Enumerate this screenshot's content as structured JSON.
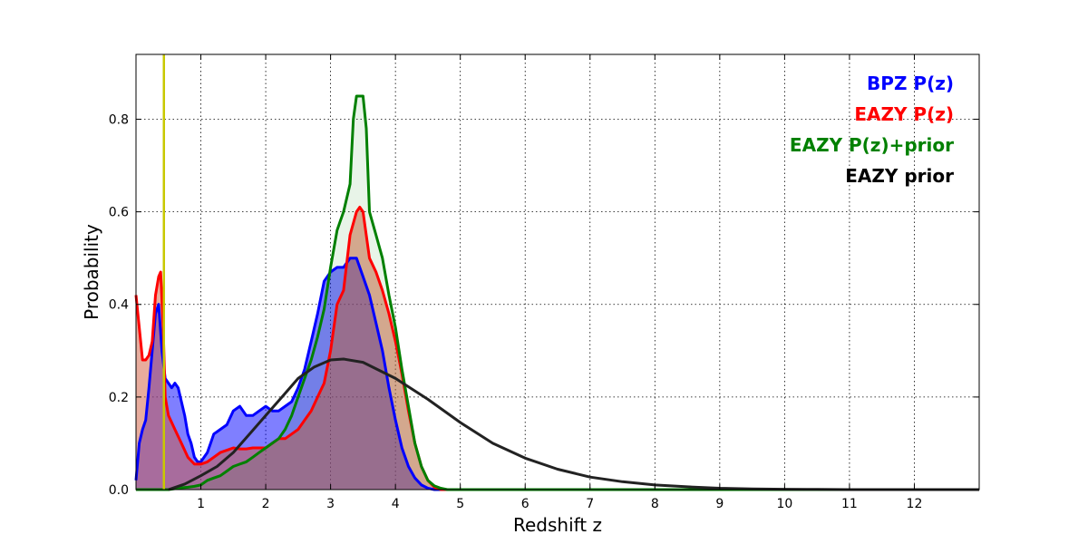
{
  "chart_data": {
    "type": "line",
    "title": "",
    "xlabel": "Redshift z",
    "ylabel": "Probability",
    "xlim": [
      0,
      13
    ],
    "ylim": [
      0,
      0.94
    ],
    "xticks": [
      1,
      2,
      3,
      4,
      5,
      6,
      7,
      8,
      9,
      10,
      11,
      12
    ],
    "yticks": [
      0.0,
      0.2,
      0.4,
      0.6,
      0.8
    ],
    "ytick_labels": [
      "0.0",
      "0.2",
      "0.4",
      "0.6",
      "0.8"
    ],
    "grid": true,
    "legend_position": "top-right",
    "vline": {
      "x": 0.43,
      "color": "#c8c800"
    },
    "series": [
      {
        "name": "BPZ P(z)",
        "color": "#0000ff",
        "fill": "#0000ff",
        "fill_opacity": 0.5,
        "points": [
          [
            0,
            0.02
          ],
          [
            0.05,
            0.1
          ],
          [
            0.1,
            0.13
          ],
          [
            0.15,
            0.15
          ],
          [
            0.2,
            0.22
          ],
          [
            0.25,
            0.3
          ],
          [
            0.3,
            0.38
          ],
          [
            0.35,
            0.4
          ],
          [
            0.4,
            0.3
          ],
          [
            0.45,
            0.24
          ],
          [
            0.5,
            0.23
          ],
          [
            0.55,
            0.22
          ],
          [
            0.6,
            0.23
          ],
          [
            0.65,
            0.22
          ],
          [
            0.7,
            0.19
          ],
          [
            0.75,
            0.16
          ],
          [
            0.8,
            0.12
          ],
          [
            0.85,
            0.1
          ],
          [
            0.9,
            0.07
          ],
          [
            0.95,
            0.06
          ],
          [
            1.0,
            0.06
          ],
          [
            1.05,
            0.07
          ],
          [
            1.1,
            0.08
          ],
          [
            1.15,
            0.1
          ],
          [
            1.2,
            0.12
          ],
          [
            1.3,
            0.13
          ],
          [
            1.4,
            0.14
          ],
          [
            1.5,
            0.17
          ],
          [
            1.6,
            0.18
          ],
          [
            1.7,
            0.16
          ],
          [
            1.8,
            0.16
          ],
          [
            1.9,
            0.17
          ],
          [
            2.0,
            0.18
          ],
          [
            2.1,
            0.17
          ],
          [
            2.2,
            0.17
          ],
          [
            2.3,
            0.18
          ],
          [
            2.4,
            0.19
          ],
          [
            2.5,
            0.22
          ],
          [
            2.6,
            0.26
          ],
          [
            2.7,
            0.32
          ],
          [
            2.8,
            0.38
          ],
          [
            2.9,
            0.45
          ],
          [
            3.0,
            0.47
          ],
          [
            3.1,
            0.48
          ],
          [
            3.2,
            0.48
          ],
          [
            3.3,
            0.5
          ],
          [
            3.4,
            0.5
          ],
          [
            3.5,
            0.46
          ],
          [
            3.6,
            0.42
          ],
          [
            3.7,
            0.36
          ],
          [
            3.8,
            0.3
          ],
          [
            3.9,
            0.22
          ],
          [
            4.0,
            0.15
          ],
          [
            4.1,
            0.09
          ],
          [
            4.2,
            0.05
          ],
          [
            4.3,
            0.025
          ],
          [
            4.4,
            0.01
          ],
          [
            4.5,
            0.003
          ],
          [
            4.6,
            0.0
          ],
          [
            5,
            0.0
          ],
          [
            13,
            0.0
          ]
        ]
      },
      {
        "name": "EAZY P(z)",
        "color": "#ff0000",
        "fill": "#d25a3c",
        "fill_opacity": 0.5,
        "points": [
          [
            0,
            0.42
          ],
          [
            0.05,
            0.35
          ],
          [
            0.1,
            0.28
          ],
          [
            0.15,
            0.28
          ],
          [
            0.2,
            0.29
          ],
          [
            0.25,
            0.32
          ],
          [
            0.3,
            0.42
          ],
          [
            0.35,
            0.46
          ],
          [
            0.38,
            0.47
          ],
          [
            0.42,
            0.35
          ],
          [
            0.45,
            0.2
          ],
          [
            0.5,
            0.16
          ],
          [
            0.6,
            0.13
          ],
          [
            0.7,
            0.1
          ],
          [
            0.8,
            0.07
          ],
          [
            0.9,
            0.055
          ],
          [
            1.0,
            0.055
          ],
          [
            1.1,
            0.06
          ],
          [
            1.2,
            0.07
          ],
          [
            1.3,
            0.08
          ],
          [
            1.4,
            0.085
          ],
          [
            1.5,
            0.09
          ],
          [
            1.6,
            0.088
          ],
          [
            1.7,
            0.088
          ],
          [
            1.8,
            0.09
          ],
          [
            1.9,
            0.09
          ],
          [
            2.0,
            0.09
          ],
          [
            2.1,
            0.1
          ],
          [
            2.2,
            0.11
          ],
          [
            2.3,
            0.11
          ],
          [
            2.4,
            0.12
          ],
          [
            2.5,
            0.13
          ],
          [
            2.6,
            0.15
          ],
          [
            2.7,
            0.17
          ],
          [
            2.8,
            0.2
          ],
          [
            2.9,
            0.23
          ],
          [
            3.0,
            0.3
          ],
          [
            3.1,
            0.4
          ],
          [
            3.2,
            0.43
          ],
          [
            3.3,
            0.55
          ],
          [
            3.4,
            0.6
          ],
          [
            3.45,
            0.61
          ],
          [
            3.5,
            0.6
          ],
          [
            3.6,
            0.5
          ],
          [
            3.7,
            0.47
          ],
          [
            3.8,
            0.43
          ],
          [
            3.9,
            0.38
          ],
          [
            4.0,
            0.32
          ],
          [
            4.1,
            0.25
          ],
          [
            4.2,
            0.17
          ],
          [
            4.3,
            0.1
          ],
          [
            4.4,
            0.05
          ],
          [
            4.5,
            0.02
          ],
          [
            4.6,
            0.005
          ],
          [
            4.7,
            0.0
          ],
          [
            13,
            0.0
          ]
        ]
      },
      {
        "name": "EAZY P(z)+prior",
        "color": "#008000",
        "fill": "#008000",
        "fill_opacity": 0.09,
        "points": [
          [
            0,
            0.0
          ],
          [
            0.5,
            0.0
          ],
          [
            0.6,
            0.002
          ],
          [
            0.7,
            0.004
          ],
          [
            0.8,
            0.005
          ],
          [
            0.9,
            0.007
          ],
          [
            1.0,
            0.01
          ],
          [
            1.1,
            0.02
          ],
          [
            1.2,
            0.025
          ],
          [
            1.3,
            0.03
          ],
          [
            1.4,
            0.04
          ],
          [
            1.5,
            0.05
          ],
          [
            1.6,
            0.055
          ],
          [
            1.7,
            0.06
          ],
          [
            1.8,
            0.07
          ],
          [
            1.9,
            0.08
          ],
          [
            2.0,
            0.09
          ],
          [
            2.1,
            0.1
          ],
          [
            2.2,
            0.11
          ],
          [
            2.3,
            0.13
          ],
          [
            2.4,
            0.16
          ],
          [
            2.5,
            0.2
          ],
          [
            2.6,
            0.24
          ],
          [
            2.7,
            0.28
          ],
          [
            2.8,
            0.33
          ],
          [
            2.9,
            0.39
          ],
          [
            3.0,
            0.48
          ],
          [
            3.1,
            0.56
          ],
          [
            3.15,
            0.58
          ],
          [
            3.2,
            0.6
          ],
          [
            3.3,
            0.66
          ],
          [
            3.35,
            0.8
          ],
          [
            3.4,
            0.85
          ],
          [
            3.5,
            0.85
          ],
          [
            3.55,
            0.78
          ],
          [
            3.6,
            0.6
          ],
          [
            3.7,
            0.55
          ],
          [
            3.8,
            0.5
          ],
          [
            3.9,
            0.42
          ],
          [
            4.0,
            0.35
          ],
          [
            4.1,
            0.26
          ],
          [
            4.2,
            0.18
          ],
          [
            4.3,
            0.1
          ],
          [
            4.4,
            0.05
          ],
          [
            4.5,
            0.02
          ],
          [
            4.6,
            0.008
          ],
          [
            4.7,
            0.003
          ],
          [
            4.8,
            0.0
          ],
          [
            12,
            0.0
          ]
        ]
      },
      {
        "name": "EAZY prior",
        "color": "#222222",
        "fill": null,
        "fill_opacity": 0,
        "points": [
          [
            0.5,
            0.0
          ],
          [
            0.75,
            0.012
          ],
          [
            1.0,
            0.03
          ],
          [
            1.25,
            0.05
          ],
          [
            1.5,
            0.08
          ],
          [
            1.75,
            0.12
          ],
          [
            2.0,
            0.16
          ],
          [
            2.25,
            0.2
          ],
          [
            2.5,
            0.24
          ],
          [
            2.75,
            0.265
          ],
          [
            3.0,
            0.28
          ],
          [
            3.2,
            0.282
          ],
          [
            3.5,
            0.275
          ],
          [
            4.0,
            0.24
          ],
          [
            4.5,
            0.195
          ],
          [
            5.0,
            0.145
          ],
          [
            5.5,
            0.1
          ],
          [
            6.0,
            0.068
          ],
          [
            6.5,
            0.044
          ],
          [
            7.0,
            0.027
          ],
          [
            7.5,
            0.017
          ],
          [
            8.0,
            0.01
          ],
          [
            8.5,
            0.006
          ],
          [
            9.0,
            0.003
          ],
          [
            9.5,
            0.0015
          ],
          [
            10.0,
            0.0008
          ],
          [
            10.5,
            0.0003
          ],
          [
            11.0,
            0.0
          ],
          [
            13,
            0.0
          ]
        ]
      }
    ]
  }
}
